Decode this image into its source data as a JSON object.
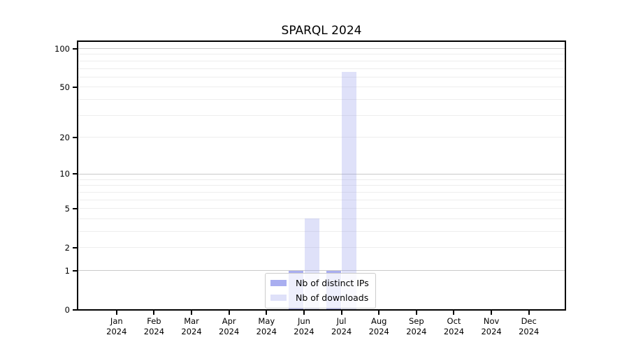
{
  "chart_data": {
    "type": "bar",
    "title": "SPARQL 2024",
    "categories": [
      "Jan",
      "Feb",
      "Mar",
      "Apr",
      "May",
      "Jun",
      "Jul",
      "Aug",
      "Sep",
      "Oct",
      "Nov",
      "Dec"
    ],
    "x_tick_year": "2024",
    "series": [
      {
        "name": "Nb of distinct IPs",
        "color": "#8c93eb",
        "alpha": 0.75,
        "values": [
          0,
          0,
          0,
          0,
          0,
          1,
          1,
          0,
          0,
          0,
          0,
          0
        ]
      },
      {
        "name": "Nb of downloads",
        "color": "#8c93eb",
        "alpha": 0.28,
        "values": [
          0,
          0,
          0,
          0,
          0,
          4,
          66,
          0,
          0,
          0,
          0,
          0
        ]
      }
    ],
    "xlabel": "",
    "ylabel": "",
    "yscale": "log1p",
    "ylim": [
      0,
      114
    ],
    "yticks": [
      0,
      1,
      2,
      5,
      10,
      20,
      50,
      100
    ],
    "grid": {
      "major_values": [
        1,
        10,
        100
      ],
      "minor_values": [
        2,
        3,
        4,
        5,
        6,
        7,
        8,
        9,
        20,
        30,
        40,
        50,
        60,
        70,
        80,
        90
      ],
      "major_color": "#c9c9c9",
      "minor_color": "#ededed"
    },
    "legend": {
      "position": "lower center"
    },
    "colors": {
      "axis": "#000000",
      "background": "#ffffff",
      "bar_base": "#8c93eb"
    }
  }
}
